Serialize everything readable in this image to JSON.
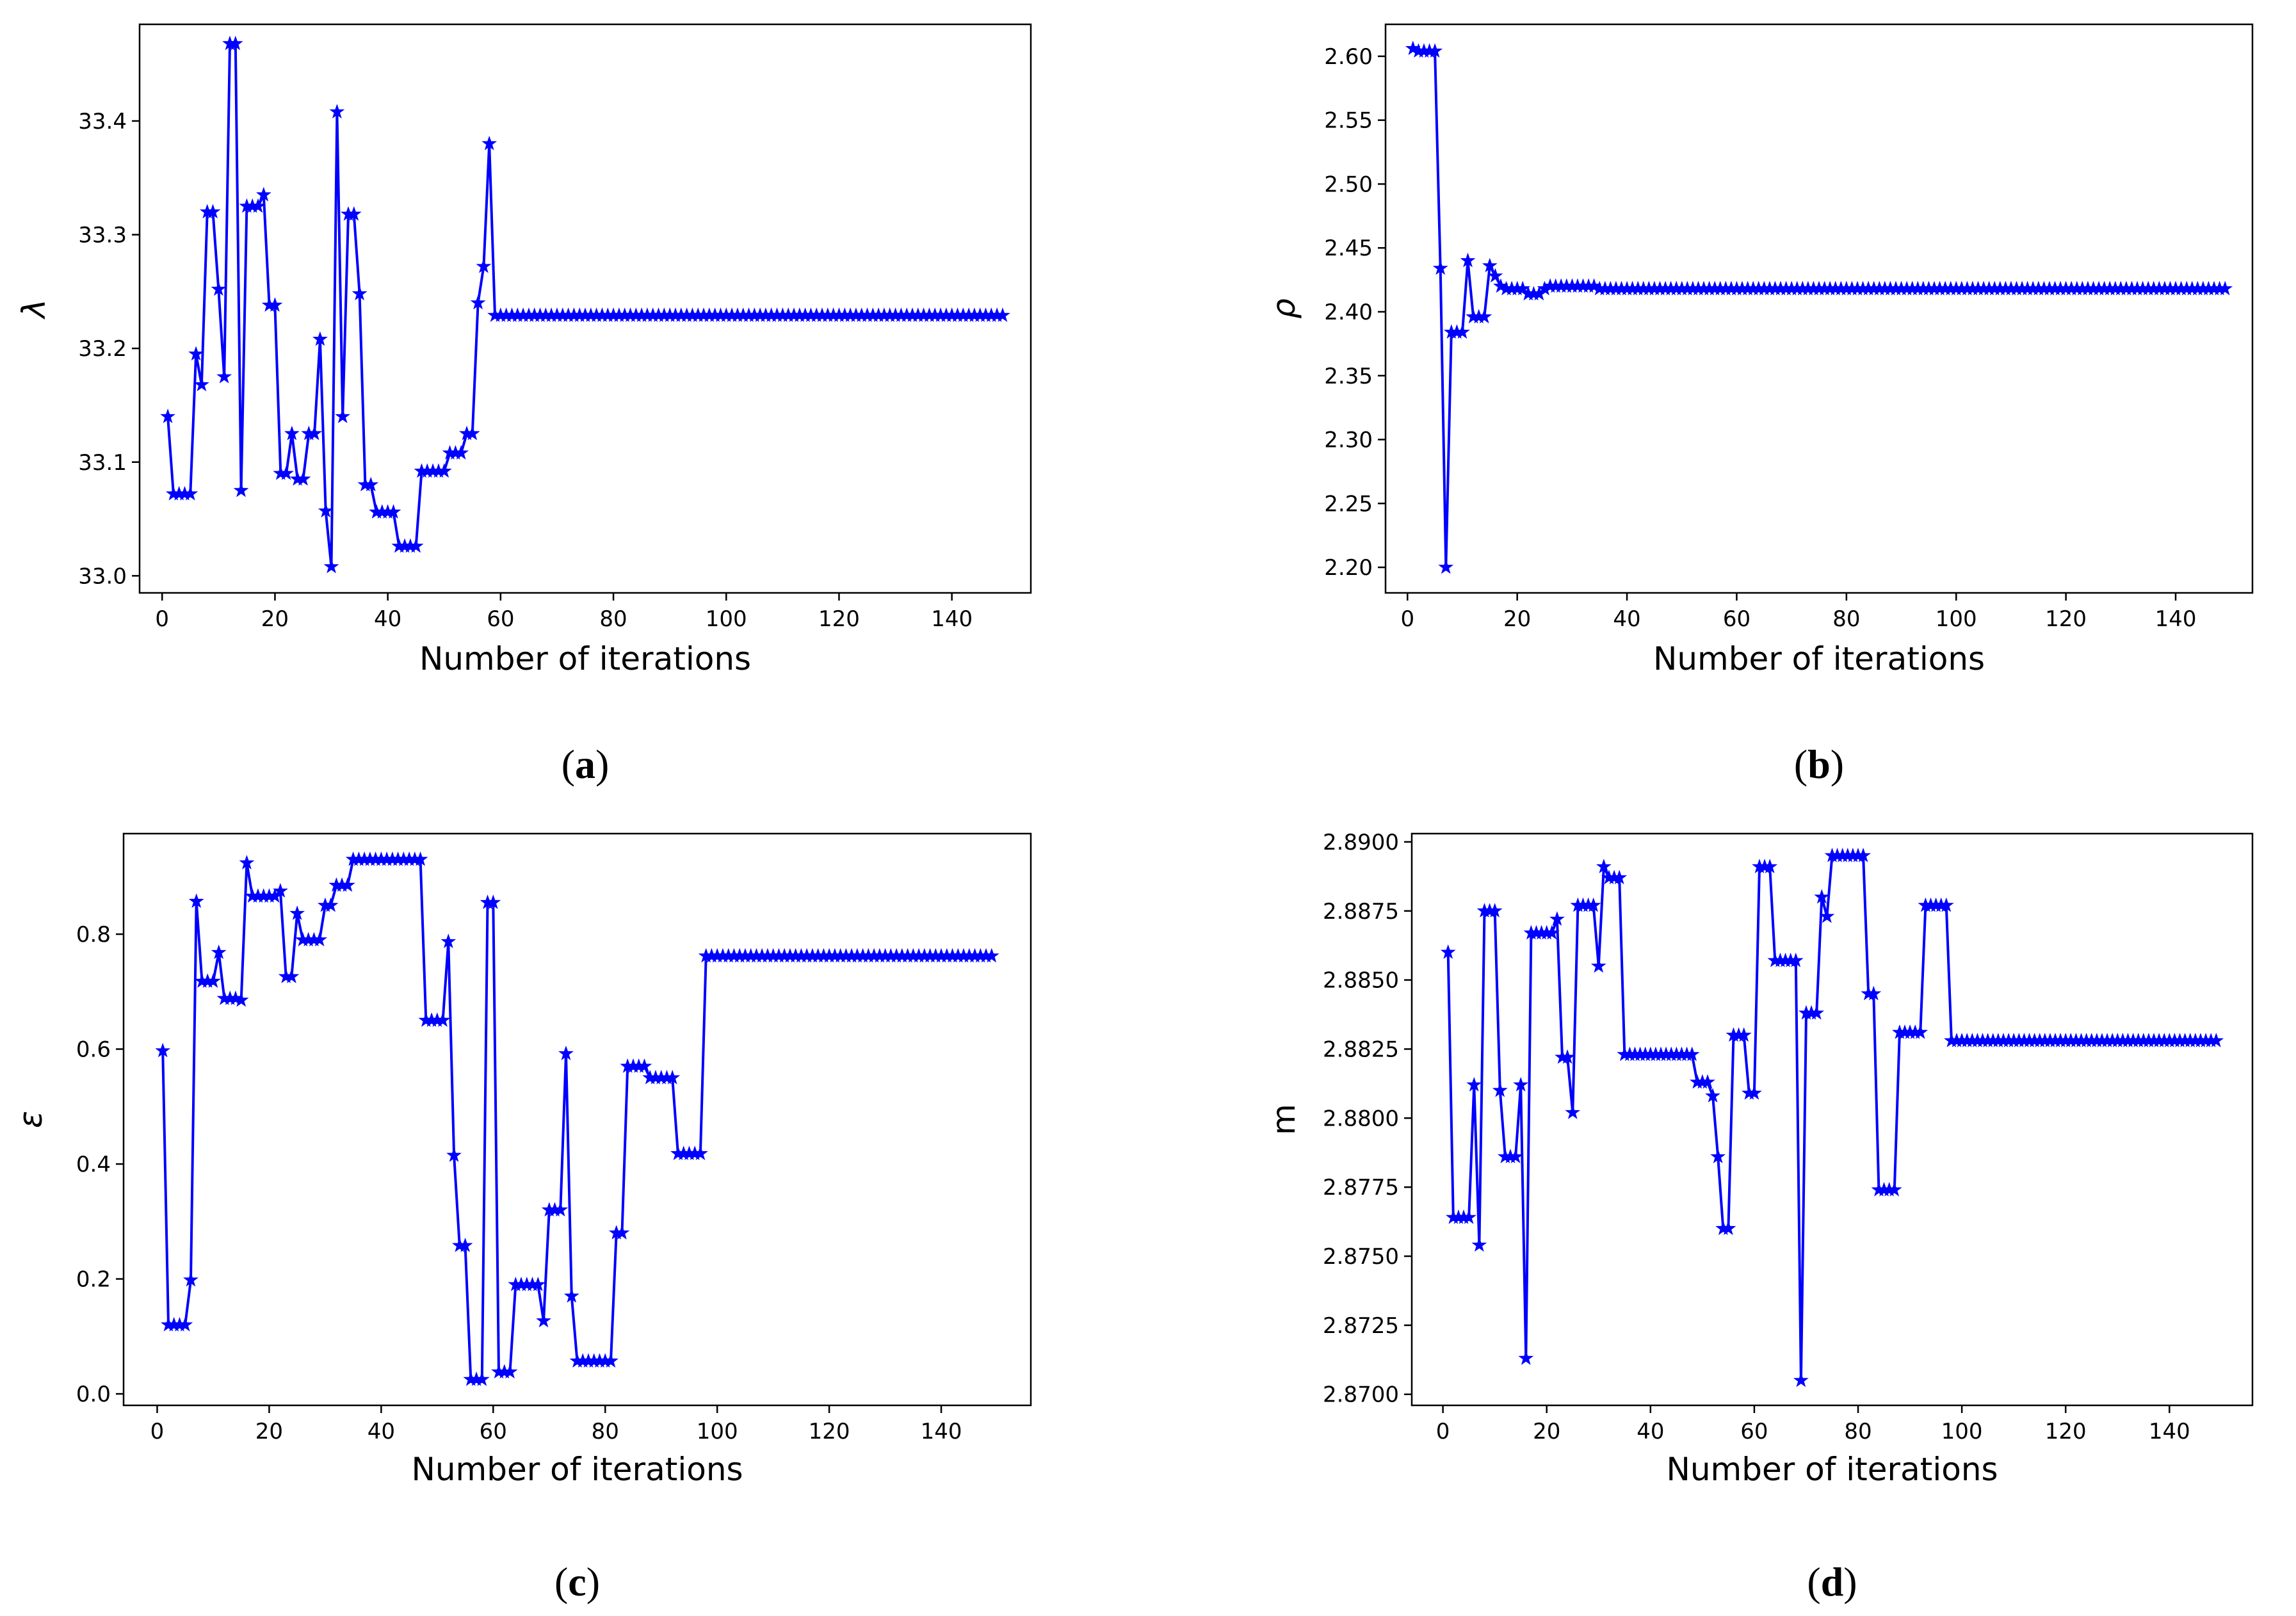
{
  "chart_data": [
    {
      "type": "line",
      "panel": "a",
      "caption_letter": "a",
      "xlabel": "Number of iterations",
      "ylabel": "λ",
      "xlim": [
        -4,
        154
      ],
      "ylim": [
        32.985,
        33.485
      ],
      "xticks": [
        0,
        20,
        40,
        60,
        80,
        100,
        120,
        140
      ],
      "yticks": [
        33.0,
        33.1,
        33.2,
        33.3,
        33.4
      ],
      "ytick_labels": [
        "33.0",
        "33.1",
        "33.2",
        "33.3",
        "33.4"
      ],
      "marker": "star",
      "color": "#0000ff",
      "points": [
        [
          1,
          33.14
        ],
        [
          2,
          33.072
        ],
        [
          3,
          33.072
        ],
        [
          4,
          33.072
        ],
        [
          5,
          33.072
        ],
        [
          6,
          33.195
        ],
        [
          7,
          33.168
        ],
        [
          8,
          33.32
        ],
        [
          9,
          33.32
        ],
        [
          10,
          33.252
        ],
        [
          11,
          33.175
        ],
        [
          12,
          33.468
        ],
        [
          13,
          33.468
        ],
        [
          14,
          33.075
        ],
        [
          15,
          33.325
        ],
        [
          16,
          33.325
        ],
        [
          17,
          33.325
        ],
        [
          18,
          33.335
        ],
        [
          19,
          33.238
        ],
        [
          20,
          33.238
        ],
        [
          21,
          33.09
        ],
        [
          22,
          33.09
        ],
        [
          23,
          33.125
        ],
        [
          24,
          33.085
        ],
        [
          25,
          33.085
        ],
        [
          26,
          33.125
        ],
        [
          27,
          33.125
        ],
        [
          28,
          33.208
        ],
        [
          29,
          33.057
        ],
        [
          30,
          33.008
        ],
        [
          31,
          33.408
        ],
        [
          32,
          33.14
        ],
        [
          33,
          33.318
        ],
        [
          34,
          33.318
        ],
        [
          35,
          33.248
        ],
        [
          36,
          33.08
        ],
        [
          37,
          33.08
        ],
        [
          38,
          33.056
        ],
        [
          39,
          33.056
        ],
        [
          40,
          33.056
        ],
        [
          41,
          33.056
        ],
        [
          42,
          33.026
        ],
        [
          43,
          33.026
        ],
        [
          44,
          33.026
        ],
        [
          45,
          33.026
        ],
        [
          46,
          33.092
        ],
        [
          47,
          33.092
        ],
        [
          48,
          33.092
        ],
        [
          49,
          33.092
        ],
        [
          50,
          33.092
        ],
        [
          51,
          33.108
        ],
        [
          52,
          33.108
        ],
        [
          53,
          33.108
        ],
        [
          54,
          33.125
        ],
        [
          55,
          33.125
        ],
        [
          56,
          33.24
        ],
        [
          57,
          33.272
        ],
        [
          58,
          33.38
        ],
        [
          59,
          33.229
        ],
        [
          149,
          33.229
        ]
      ]
    },
    {
      "type": "line",
      "panel": "b",
      "caption_letter": "b",
      "xlabel": "Number of iterations",
      "ylabel": "ρ",
      "xlim": [
        -4,
        154
      ],
      "ylim": [
        2.18,
        2.625
      ],
      "xticks": [
        0,
        20,
        40,
        60,
        80,
        100,
        120,
        140
      ],
      "yticks": [
        2.2,
        2.25,
        2.3,
        2.35,
        2.4,
        2.45,
        2.5,
        2.55,
        2.6
      ],
      "ytick_labels": [
        "2.20",
        "2.25",
        "2.30",
        "2.35",
        "2.40",
        "2.45",
        "2.50",
        "2.55",
        "2.60"
      ],
      "marker": "star",
      "color": "#0000ff",
      "points": [
        [
          1,
          2.606
        ],
        [
          2,
          2.604
        ],
        [
          3,
          2.604
        ],
        [
          4,
          2.604
        ],
        [
          5,
          2.604
        ],
        [
          6,
          2.434
        ],
        [
          7,
          2.2
        ],
        [
          8,
          2.384
        ],
        [
          9,
          2.384
        ],
        [
          10,
          2.384
        ],
        [
          11,
          2.44
        ],
        [
          12,
          2.396
        ],
        [
          13,
          2.396
        ],
        [
          14,
          2.396
        ],
        [
          15,
          2.436
        ],
        [
          16,
          2.428
        ],
        [
          17,
          2.42
        ],
        [
          18,
          2.418
        ],
        [
          19,
          2.418
        ],
        [
          20,
          2.418
        ],
        [
          21,
          2.418
        ],
        [
          22,
          2.414
        ],
        [
          23,
          2.414
        ],
        [
          24,
          2.414
        ],
        [
          25,
          2.418
        ],
        [
          26,
          2.42
        ],
        [
          30,
          2.42
        ],
        [
          35,
          2.418
        ],
        [
          149,
          2.418
        ]
      ]
    },
    {
      "type": "line",
      "panel": "c",
      "caption_letter": "c",
      "xlabel": "Number of iterations",
      "ylabel": "ε",
      "xlim": [
        -6,
        156
      ],
      "ylim": [
        -0.02,
        0.975
      ],
      "xticks": [
        0,
        20,
        40,
        60,
        80,
        100,
        120,
        140
      ],
      "yticks": [
        0.0,
        0.2,
        0.4,
        0.6,
        0.8
      ],
      "ytick_labels": [
        "0.0",
        "0.2",
        "0.4",
        "0.6",
        "0.8"
      ],
      "marker": "star",
      "color": "#0000ff",
      "points": [
        [
          1,
          0.597
        ],
        [
          2,
          0.12
        ],
        [
          3,
          0.12
        ],
        [
          4,
          0.12
        ],
        [
          5,
          0.12
        ],
        [
          6,
          0.198
        ],
        [
          7,
          0.857
        ],
        [
          8,
          0.718
        ],
        [
          9,
          0.718
        ],
        [
          10,
          0.718
        ],
        [
          11,
          0.768
        ],
        [
          12,
          0.688
        ],
        [
          13,
          0.688
        ],
        [
          14,
          0.688
        ],
        [
          15,
          0.685
        ],
        [
          16,
          0.924
        ],
        [
          17,
          0.866
        ],
        [
          18,
          0.866
        ],
        [
          19,
          0.866
        ],
        [
          20,
          0.866
        ],
        [
          21,
          0.866
        ],
        [
          22,
          0.875
        ],
        [
          23,
          0.726
        ],
        [
          24,
          0.726
        ],
        [
          25,
          0.836
        ],
        [
          26,
          0.79
        ],
        [
          27,
          0.79
        ],
        [
          28,
          0.79
        ],
        [
          29,
          0.79
        ],
        [
          30,
          0.85
        ],
        [
          31,
          0.85
        ],
        [
          32,
          0.885
        ],
        [
          33,
          0.885
        ],
        [
          34,
          0.885
        ],
        [
          35,
          0.93
        ],
        [
          47,
          0.93
        ],
        [
          48,
          0.65
        ],
        [
          49,
          0.65
        ],
        [
          50,
          0.65
        ],
        [
          51,
          0.65
        ],
        [
          52,
          0.787
        ],
        [
          53,
          0.415
        ],
        [
          54,
          0.258
        ],
        [
          55,
          0.258
        ],
        [
          56,
          0.025
        ],
        [
          57,
          0.025
        ],
        [
          58,
          0.025
        ],
        [
          59,
          0.855
        ],
        [
          60,
          0.855
        ],
        [
          61,
          0.038
        ],
        [
          62,
          0.038
        ],
        [
          63,
          0.038
        ],
        [
          64,
          0.19
        ],
        [
          65,
          0.19
        ],
        [
          66,
          0.19
        ],
        [
          67,
          0.19
        ],
        [
          68,
          0.19
        ],
        [
          69,
          0.127
        ],
        [
          70,
          0.32
        ],
        [
          71,
          0.32
        ],
        [
          72,
          0.32
        ],
        [
          73,
          0.592
        ],
        [
          74,
          0.17
        ],
        [
          75,
          0.057
        ],
        [
          76,
          0.057
        ],
        [
          77,
          0.057
        ],
        [
          78,
          0.057
        ],
        [
          79,
          0.057
        ],
        [
          80,
          0.057
        ],
        [
          81,
          0.057
        ],
        [
          82,
          0.28
        ],
        [
          83,
          0.28
        ],
        [
          84,
          0.57
        ],
        [
          85,
          0.57
        ],
        [
          86,
          0.57
        ],
        [
          87,
          0.57
        ],
        [
          88,
          0.55
        ],
        [
          89,
          0.55
        ],
        [
          90,
          0.55
        ],
        [
          91,
          0.55
        ],
        [
          92,
          0.55
        ],
        [
          93,
          0.418
        ],
        [
          94,
          0.418
        ],
        [
          95,
          0.418
        ],
        [
          96,
          0.418
        ],
        [
          97,
          0.418
        ],
        [
          98,
          0.762
        ],
        [
          149,
          0.762
        ]
      ]
    },
    {
      "type": "line",
      "panel": "d",
      "caption_letter": "d",
      "xlabel": "Number of iterations",
      "ylabel": "m",
      "xlim": [
        -6,
        156
      ],
      "ylim": [
        2.8696,
        2.8903
      ],
      "xticks": [
        0,
        20,
        40,
        60,
        80,
        100,
        120,
        140
      ],
      "yticks": [
        2.87,
        2.8725,
        2.875,
        2.8775,
        2.88,
        2.8825,
        2.885,
        2.8875,
        2.89
      ],
      "ytick_labels": [
        "2.8700",
        "2.8725",
        "2.8750",
        "2.8775",
        "2.8800",
        "2.8825",
        "2.8850",
        "2.8875",
        "2.8900"
      ],
      "marker": "star",
      "color": "#0000ff",
      "points": [
        [
          1,
          2.886
        ],
        [
          2,
          2.8764
        ],
        [
          3,
          2.8764
        ],
        [
          4,
          2.8764
        ],
        [
          5,
          2.8764
        ],
        [
          6,
          2.8812
        ],
        [
          7,
          2.8754
        ],
        [
          8,
          2.8875
        ],
        [
          9,
          2.8875
        ],
        [
          10,
          2.8875
        ],
        [
          11,
          2.881
        ],
        [
          12,
          2.8786
        ],
        [
          13,
          2.8786
        ],
        [
          14,
          2.8786
        ],
        [
          15,
          2.8812
        ],
        [
          16,
          2.8713
        ],
        [
          17,
          2.8867
        ],
        [
          18,
          2.8867
        ],
        [
          19,
          2.8867
        ],
        [
          20,
          2.8867
        ],
        [
          21,
          2.8867
        ],
        [
          22,
          2.8872
        ],
        [
          23,
          2.8822
        ],
        [
          24,
          2.8822
        ],
        [
          25,
          2.8802
        ],
        [
          26,
          2.8877
        ],
        [
          27,
          2.8877
        ],
        [
          28,
          2.8877
        ],
        [
          29,
          2.8877
        ],
        [
          30,
          2.8855
        ],
        [
          31,
          2.8891
        ],
        [
          32,
          2.8887
        ],
        [
          33,
          2.8887
        ],
        [
          34,
          2.8887
        ],
        [
          35,
          2.8823
        ],
        [
          48,
          2.8823
        ],
        [
          49,
          2.8813
        ],
        [
          50,
          2.8813
        ],
        [
          51,
          2.8813
        ],
        [
          52,
          2.8808
        ],
        [
          53,
          2.8786
        ],
        [
          54,
          2.876
        ],
        [
          55,
          2.876
        ],
        [
          56,
          2.883
        ],
        [
          57,
          2.883
        ],
        [
          58,
          2.883
        ],
        [
          59,
          2.8809
        ],
        [
          60,
          2.8809
        ],
        [
          61,
          2.8891
        ],
        [
          62,
          2.8891
        ],
        [
          63,
          2.8891
        ],
        [
          64,
          2.8857
        ],
        [
          65,
          2.8857
        ],
        [
          66,
          2.8857
        ],
        [
          67,
          2.8857
        ],
        [
          68,
          2.8857
        ],
        [
          69,
          2.8705
        ],
        [
          70,
          2.8838
        ],
        [
          71,
          2.8838
        ],
        [
          72,
          2.8838
        ],
        [
          73,
          2.888
        ],
        [
          74,
          2.8873
        ],
        [
          75,
          2.8895
        ],
        [
          76,
          2.8895
        ],
        [
          77,
          2.8895
        ],
        [
          78,
          2.8895
        ],
        [
          79,
          2.8895
        ],
        [
          80,
          2.8895
        ],
        [
          81,
          2.8895
        ],
        [
          82,
          2.8845
        ],
        [
          83,
          2.8845
        ],
        [
          84,
          2.8774
        ],
        [
          85,
          2.8774
        ],
        [
          86,
          2.8774
        ],
        [
          87,
          2.8774
        ],
        [
          88,
          2.8831
        ],
        [
          89,
          2.8831
        ],
        [
          90,
          2.8831
        ],
        [
          91,
          2.8831
        ],
        [
          92,
          2.8831
        ],
        [
          93,
          2.8877
        ],
        [
          94,
          2.8877
        ],
        [
          95,
          2.8877
        ],
        [
          96,
          2.8877
        ],
        [
          97,
          2.8877
        ],
        [
          98,
          2.8828
        ],
        [
          149,
          2.8828
        ]
      ]
    }
  ]
}
